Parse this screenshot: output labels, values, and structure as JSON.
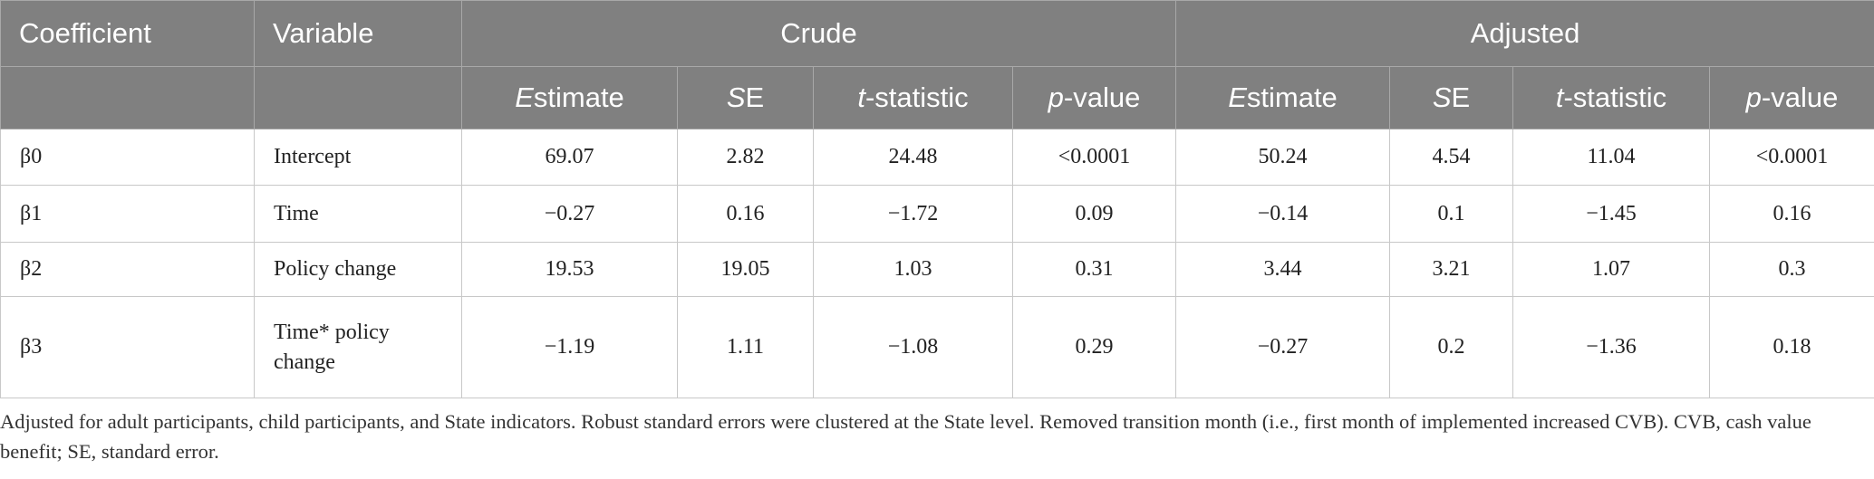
{
  "table": {
    "header_top": [
      "Coefficient",
      "Variable",
      "Crude",
      "Adjusted"
    ],
    "header_sub": [
      "Estimate",
      "SE",
      "t-statistic",
      "p-value",
      "Estimate",
      "SE",
      "t-statistic",
      "p-value"
    ],
    "rows": [
      [
        "β0",
        "Intercept",
        "69.07",
        "2.82",
        "24.48",
        "<0.0001",
        "50.24",
        "4.54",
        "11.04",
        "<0.0001"
      ],
      [
        "β1",
        "Time",
        "−0.27",
        "0.16",
        "−1.72",
        "0.09",
        "−0.14",
        "0.1",
        "−1.45",
        "0.16"
      ],
      [
        "β2",
        "Policy change",
        "19.53",
        "19.05",
        "1.03",
        "0.31",
        "3.44",
        "3.21",
        "1.07",
        "0.3"
      ],
      [
        "β3",
        "Time* policy change",
        "−1.19",
        "1.11",
        "−1.08",
        "0.29",
        "−0.27",
        "0.2",
        "−1.36",
        "0.18"
      ]
    ]
  },
  "footnote": "Adjusted for adult participants, child participants, and State indicators. Robust standard errors were clustered at the State level. Removed transition month (i.e., first month of implemented increased CVB). CVB, cash value benefit; SE, standard error."
}
